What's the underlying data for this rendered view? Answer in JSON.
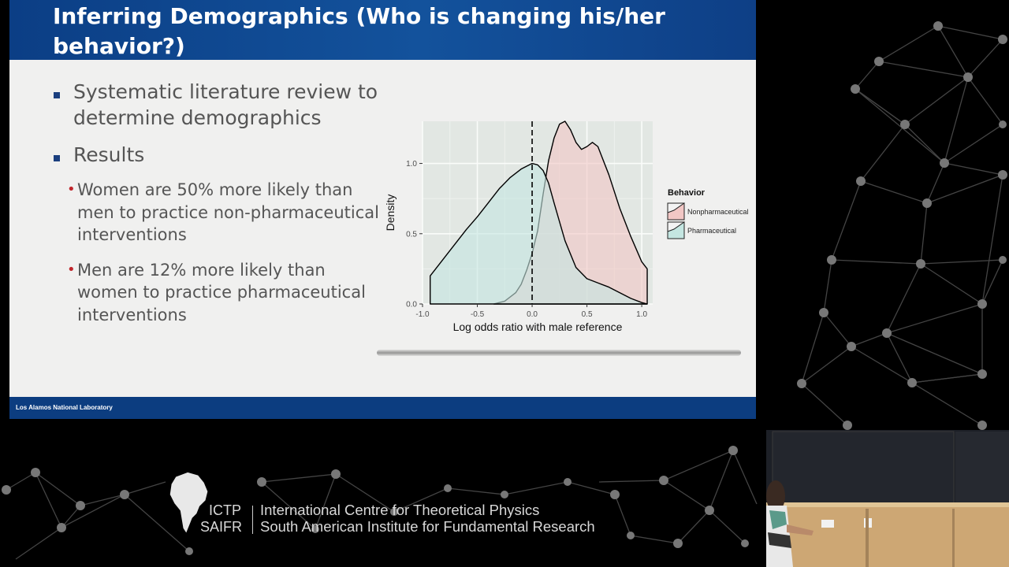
{
  "slide": {
    "title": "Inferring Demographics (Who is changing his/her behavior?)",
    "bullets": [
      "Systematic literature review to determine demographics",
      "Results"
    ],
    "sub_bullets": [
      "Women are 50% more likely than men to practice non-pharmaceutical interventions",
      "Men are 12% more likely than women to practice pharmaceutical interventions"
    ],
    "footer_label": "Los Alamos National Laboratory"
  },
  "chart_data": {
    "type": "area",
    "xlabel": "Log odds ratio with male reference",
    "ylabel": "Density",
    "xlim": [
      -1.0,
      1.1
    ],
    "ylim": [
      0.0,
      1.3
    ],
    "x_ticks": [
      "-1.0",
      "-0.5",
      "0.0",
      "0.5",
      "1.0"
    ],
    "y_ticks": [
      "0.0",
      "0.5",
      "1.0"
    ],
    "reference_line_x": 0.0,
    "legend_title": "Behavior",
    "legend_position": "right",
    "grid": true,
    "series": [
      {
        "name": "Nonpharmaceutical",
        "color": "#f2c7c5",
        "x": [
          -0.35,
          -0.25,
          -0.15,
          -0.1,
          -0.05,
          0.0,
          0.05,
          0.1,
          0.15,
          0.2,
          0.25,
          0.3,
          0.35,
          0.4,
          0.45,
          0.5,
          0.55,
          0.6,
          0.7,
          0.8,
          0.9,
          1.0,
          1.05
        ],
        "y": [
          0.0,
          0.02,
          0.08,
          0.14,
          0.24,
          0.36,
          0.52,
          0.78,
          1.02,
          1.18,
          1.28,
          1.3,
          1.24,
          1.15,
          1.1,
          1.12,
          1.15,
          1.12,
          0.92,
          0.68,
          0.48,
          0.3,
          0.25
        ]
      },
      {
        "name": "Pharmaceutical",
        "color": "#c4e6e1",
        "x": [
          -0.93,
          -0.85,
          -0.75,
          -0.6,
          -0.5,
          -0.4,
          -0.3,
          -0.2,
          -0.1,
          0.0,
          0.05,
          0.1,
          0.15,
          0.2,
          0.3,
          0.4,
          0.5,
          0.6,
          0.7,
          0.8,
          0.9,
          1.0,
          1.05
        ],
        "y": [
          0.2,
          0.28,
          0.38,
          0.53,
          0.62,
          0.72,
          0.82,
          0.9,
          0.96,
          1.0,
          0.99,
          0.95,
          0.86,
          0.72,
          0.45,
          0.26,
          0.18,
          0.15,
          0.12,
          0.08,
          0.04,
          0.01,
          0.0
        ]
      }
    ]
  },
  "branding": {
    "abbr_line1": "ICTP",
    "abbr_line2": "SAIFR",
    "name_line1": "International Centre for Theoretical Physics",
    "name_line2": "South American Institute for Fundamental Research"
  }
}
